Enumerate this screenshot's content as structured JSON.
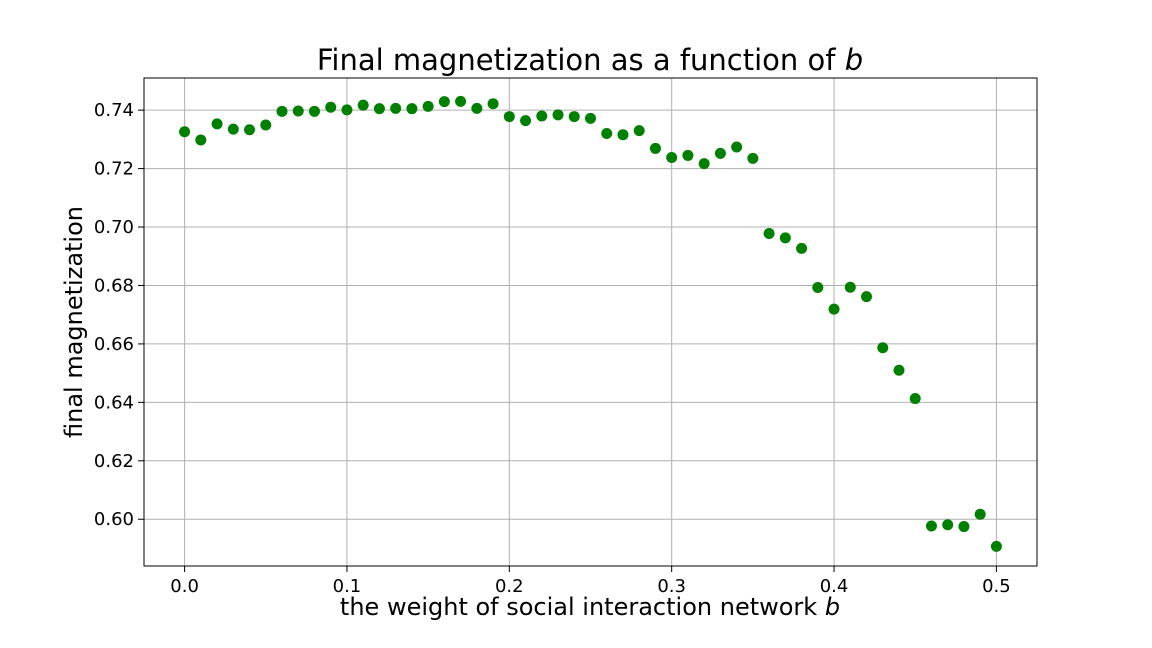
{
  "chart_data": {
    "type": "scatter",
    "title": "Final magnetization as a function of ",
    "title_var": "b",
    "xlabel": "the weight of social interaction network ",
    "xlabel_var": "b",
    "ylabel": "final magnetization",
    "xlim": [
      -0.025,
      0.525
    ],
    "ylim": [
      0.584,
      0.751
    ],
    "xticks": [
      0.0,
      0.1,
      0.2,
      0.3,
      0.4,
      0.5
    ],
    "xtick_labels": [
      "0.0",
      "0.1",
      "0.2",
      "0.3",
      "0.4",
      "0.5"
    ],
    "yticks": [
      0.6,
      0.62,
      0.64,
      0.66,
      0.68,
      0.7,
      0.72,
      0.74
    ],
    "ytick_labels": [
      "0.60",
      "0.62",
      "0.64",
      "0.66",
      "0.68",
      "0.70",
      "0.72",
      "0.74"
    ],
    "grid": true,
    "marker_color": "#008000",
    "x": [
      0.0,
      0.01,
      0.02,
      0.03,
      0.04,
      0.05,
      0.06,
      0.07,
      0.08,
      0.09,
      0.1,
      0.11,
      0.12,
      0.13,
      0.14,
      0.15,
      0.16,
      0.17,
      0.18,
      0.19,
      0.2,
      0.21,
      0.22,
      0.23,
      0.24,
      0.25,
      0.26,
      0.27,
      0.28,
      0.29,
      0.3,
      0.31,
      0.32,
      0.33,
      0.34,
      0.35,
      0.36,
      0.37,
      0.38,
      0.39,
      0.4,
      0.41,
      0.42,
      0.43,
      0.44,
      0.45,
      0.46,
      0.47,
      0.48,
      0.49,
      0.5
    ],
    "y": [
      0.7326,
      0.7298,
      0.7353,
      0.7335,
      0.7333,
      0.7349,
      0.7396,
      0.7397,
      0.7396,
      0.741,
      0.7401,
      0.7417,
      0.7405,
      0.7406,
      0.7405,
      0.7413,
      0.7429,
      0.743,
      0.7406,
      0.7422,
      0.7378,
      0.7364,
      0.738,
      0.7384,
      0.7378,
      0.7372,
      0.732,
      0.7316,
      0.733,
      0.7269,
      0.7238,
      0.7245,
      0.7217,
      0.7252,
      0.7274,
      0.7235,
      0.6978,
      0.6963,
      0.6927,
      0.6793,
      0.6719,
      0.6794,
      0.6762,
      0.6587,
      0.651,
      0.6413,
      0.5977,
      0.5981,
      0.5975,
      0.6017,
      0.5907
    ]
  }
}
